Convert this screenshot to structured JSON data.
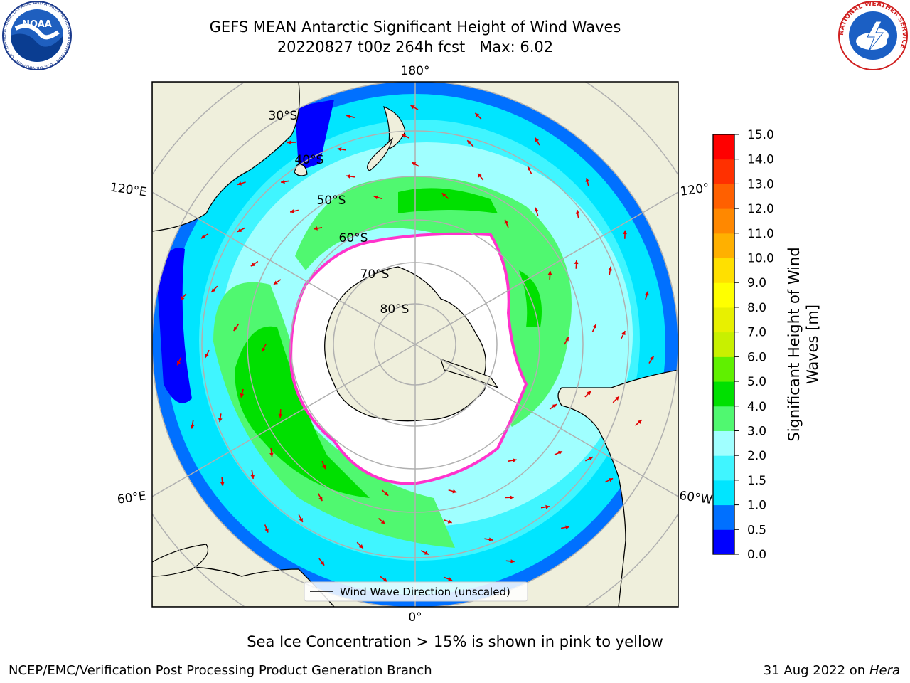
{
  "title_line1": "GEFS MEAN Antarctic Significant Height of Wind Waves",
  "title_line2": "20220827 t00z 264h fcst   Max: 6.02",
  "caption": "Sea Ice Concentration > 15% is shown in pink to yellow",
  "footer_left": "NCEP/EMC/Verification Post Processing Product Generation Branch",
  "footer_date": "31 Aug 2022 on",
  "footer_machine": "Hera",
  "noaa_logo_text": "NOAA",
  "noaa_ring_text": "NATIONAL OCEANIC AND ATMOSPHERIC ADMINISTRATION · U.S. DEPARTMENT OF COMMERCE",
  "nws_ring_text": "NATIONAL WEATHER SERVICE",
  "legend_label": "Wind Wave Direction (unscaled)",
  "map_labels": {
    "lon_180": "180°",
    "lon_0": "0°",
    "lon_120e": "120°E",
    "lon_60e": "60°E",
    "lon_120w": "120°",
    "lon_60w": "60°W",
    "lat_30": "30°S",
    "lat_40": "40°S",
    "lat_50": "50°S",
    "lat_60": "60°S",
    "lat_70": "70°S",
    "lat_80": "80°S"
  },
  "colorbar": {
    "label": "Significant Height of Wind Waves [m]",
    "label_line1": "Significant Height of Wind",
    "label_line2": "Waves [m]",
    "ticks": [
      "0.0",
      "0.5",
      "1.0",
      "1.5",
      "2.0",
      "3.0",
      "4.0",
      "5.0",
      "6.0",
      "7.0",
      "8.0",
      "9.0",
      "10.0",
      "11.0",
      "12.0",
      "13.0",
      "14.0",
      "15.0"
    ],
    "colors": [
      "#0000ff",
      "#0070ff",
      "#00e5ff",
      "#40f5ff",
      "#a0ffff",
      "#50f870",
      "#00e000",
      "#60f000",
      "#c8f000",
      "#e8f000",
      "#ffff00",
      "#ffe000",
      "#ffb000",
      "#ff8800",
      "#ff6000",
      "#ff3000",
      "#ff0000"
    ]
  },
  "colors": {
    "land": "#efefdc",
    "ice_edge": "#ff33cc",
    "arrow": "#e00000",
    "grid": "#b0b0b0"
  }
}
